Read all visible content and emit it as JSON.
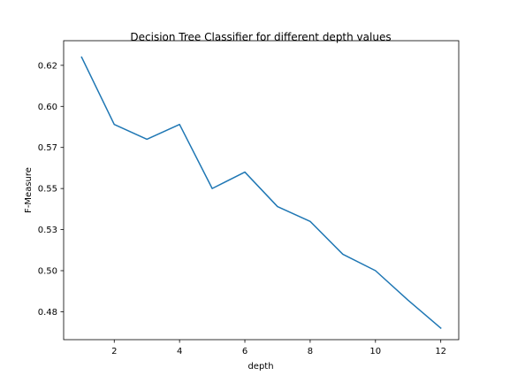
{
  "chart_data": {
    "type": "line",
    "title": "Decision Tree Classifier for different depth values",
    "xlabel": "depth",
    "ylabel": "F-Measure",
    "xlim": [
      0.45,
      12.55
    ],
    "ylim": [
      0.458,
      0.64
    ],
    "x_ticks": [
      2,
      4,
      6,
      8,
      10,
      12
    ],
    "y_ticks": [
      0.475,
      0.5,
      0.525,
      0.55,
      0.575,
      0.6,
      0.625
    ],
    "x_tick_labels": [
      "2",
      "4",
      "6",
      "8",
      "10",
      "12"
    ],
    "y_tick_labels": [
      "0.48",
      "0.50",
      "0.53",
      "0.55",
      "0.57",
      "0.60",
      "0.62"
    ],
    "grid": false,
    "series": [
      {
        "color": "#1f77b4",
        "x": [
          1,
          2,
          3,
          4,
          5,
          6,
          7,
          8,
          9,
          10,
          11,
          12
        ],
        "y": [
          0.63,
          0.589,
          0.58,
          0.589,
          0.55,
          0.56,
          0.539,
          0.53,
          0.51,
          0.5,
          0.482,
          0.465
        ]
      }
    ]
  }
}
